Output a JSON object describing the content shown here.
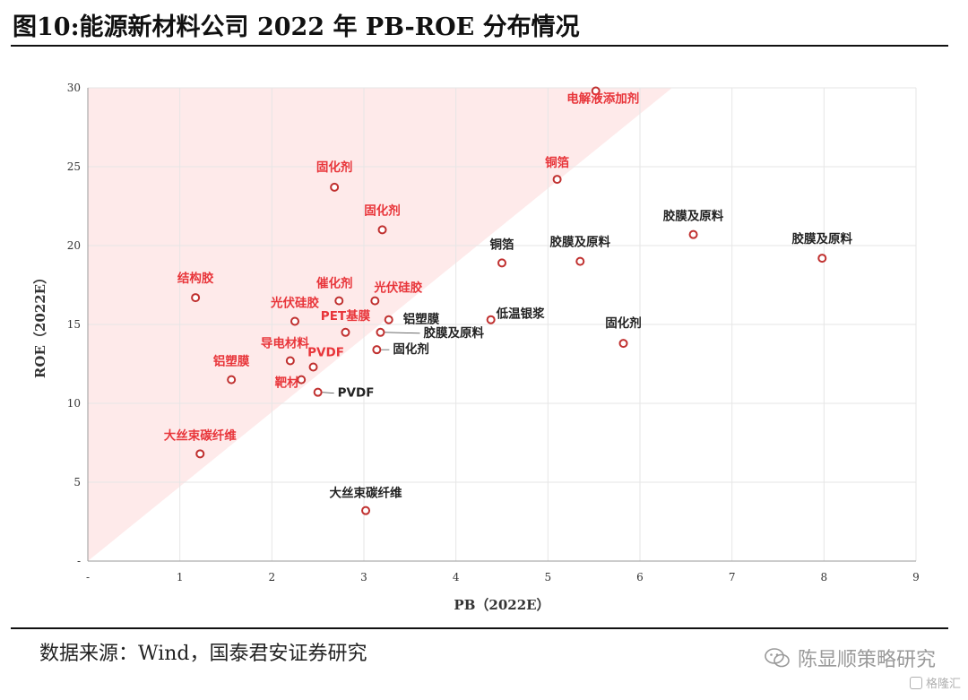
{
  "title": "图10:能源新材料公司 2022 年 PB-ROE 分布情况",
  "source": "数据来源：Wind，国泰君安证券研究",
  "watermark": "陈显顺策略研究",
  "watermark_small": "格隆汇",
  "colors": {
    "highlight": "#e8353a",
    "normal": "#222222",
    "marker": "#c0302f",
    "band": "#fde3e3",
    "grid": "#e6e6e6"
  },
  "chart_data": {
    "type": "scatter",
    "xlabel": "PB（2022E）",
    "ylabel": "ROE（2022E）",
    "xlim": [
      0,
      9
    ],
    "ylim": [
      0,
      30
    ],
    "xticks": [
      "-",
      "1",
      "2",
      "3",
      "4",
      "5",
      "6",
      "7",
      "8",
      "9"
    ],
    "yticks": [
      "-",
      "5",
      "10",
      "15",
      "20",
      "25",
      "30"
    ],
    "grid": true,
    "band": "diagonal from (0,0) to (6.35,30)",
    "points": [
      {
        "label": "电解液添加剂",
        "x": 5.52,
        "y": 29.8,
        "highlight": true
      },
      {
        "label": "铜箔",
        "x": 5.1,
        "y": 24.2,
        "highlight": true
      },
      {
        "label": "固化剂",
        "x": 2.68,
        "y": 23.7,
        "highlight": true
      },
      {
        "label": "固化剂",
        "x": 3.2,
        "y": 21.0,
        "highlight": true
      },
      {
        "label": "结构胶",
        "x": 1.17,
        "y": 16.7,
        "highlight": true
      },
      {
        "label": "催化剂",
        "x": 2.73,
        "y": 16.5,
        "highlight": true
      },
      {
        "label": "光伏硅胶",
        "x": 3.12,
        "y": 16.5,
        "highlight": true
      },
      {
        "label": "光伏硅胶",
        "x": 2.25,
        "y": 15.2,
        "highlight": true
      },
      {
        "label": "PET基膜",
        "x": 2.8,
        "y": 14.5,
        "highlight": true
      },
      {
        "label": "导电材料",
        "x": 2.2,
        "y": 12.7,
        "highlight": true
      },
      {
        "label": "PVDF",
        "x": 2.45,
        "y": 12.3,
        "highlight": true
      },
      {
        "label": "铝塑膜",
        "x": 1.56,
        "y": 11.5,
        "highlight": true
      },
      {
        "label": "靶材",
        "x": 2.32,
        "y": 11.5,
        "highlight": true
      },
      {
        "label": "大丝束碳纤维",
        "x": 1.22,
        "y": 6.8,
        "highlight": true
      },
      {
        "label": "胶膜及原料",
        "x": 6.58,
        "y": 20.7,
        "highlight": false
      },
      {
        "label": "铜箔",
        "x": 4.5,
        "y": 18.9,
        "highlight": false
      },
      {
        "label": "胶膜及原料",
        "x": 5.35,
        "y": 19.0,
        "highlight": false
      },
      {
        "label": "胶膜及原料",
        "x": 7.98,
        "y": 19.2,
        "highlight": false
      },
      {
        "label": "铝塑膜",
        "x": 3.27,
        "y": 15.3,
        "highlight": false
      },
      {
        "label": "低温银浆",
        "x": 4.38,
        "y": 15.3,
        "highlight": false
      },
      {
        "label": "胶膜及原料",
        "x": 3.18,
        "y": 14.5,
        "highlight": false
      },
      {
        "label": "固化剂",
        "x": 5.82,
        "y": 13.8,
        "highlight": false
      },
      {
        "label": "固化剂",
        "x": 3.14,
        "y": 13.4,
        "highlight": false
      },
      {
        "label": "PVDF",
        "x": 2.5,
        "y": 10.7,
        "highlight": false
      },
      {
        "label": "大丝束碳纤维",
        "x": 3.02,
        "y": 3.2,
        "highlight": false
      }
    ]
  }
}
